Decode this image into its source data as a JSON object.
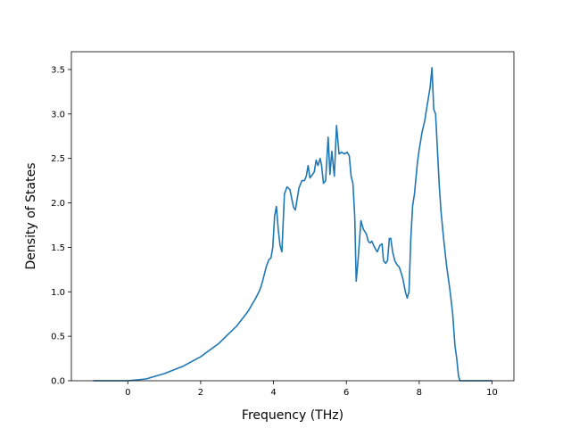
{
  "chart_data": {
    "type": "line",
    "title": "",
    "xlabel": "Frequency (THz)",
    "ylabel": "Density of States",
    "xlim": [
      -1.55,
      10.6
    ],
    "ylim": [
      0,
      3.7
    ],
    "xticks": [
      0,
      2,
      4,
      6,
      8,
      10
    ],
    "xtick_labels": [
      "0",
      "2",
      "4",
      "6",
      "8",
      "10"
    ],
    "yticks": [
      0,
      0.5,
      1.0,
      1.5,
      2.0,
      2.5,
      3.0,
      3.5
    ],
    "ytick_labels": [
      "0.0",
      "0.5",
      "1.0",
      "1.5",
      "2.0",
      "2.5",
      "3.0",
      "3.5"
    ],
    "grid": false,
    "legend": "none",
    "line_color": "#1f77b4",
    "series": [
      {
        "x": [
          -0.95,
          -0.5,
          0,
          0.5,
          1.0,
          1.5,
          2.0,
          2.5,
          3.0,
          3.3,
          3.5,
          3.6,
          3.65,
          3.7,
          3.75,
          3.8,
          3.87,
          3.93,
          3.98,
          4.03,
          4.08,
          4.13,
          4.18,
          4.23,
          4.3,
          4.37,
          4.45,
          4.55,
          4.6,
          4.7,
          4.78,
          4.85,
          4.9,
          4.95,
          5.0,
          5.07,
          5.12,
          5.17,
          5.22,
          5.28,
          5.32,
          5.37,
          5.43,
          5.5,
          5.55,
          5.6,
          5.67,
          5.73,
          5.8,
          5.87,
          5.95,
          6.02,
          6.08,
          6.13,
          6.18,
          6.23,
          6.27,
          6.32,
          6.4,
          6.47,
          6.55,
          6.6,
          6.65,
          6.7,
          6.75,
          6.8,
          6.85,
          6.92,
          6.98,
          7.02,
          7.08,
          7.13,
          7.18,
          7.22,
          7.27,
          7.33,
          7.4,
          7.45,
          7.5,
          7.55,
          7.62,
          7.67,
          7.72,
          7.77,
          7.82,
          7.87,
          7.95,
          8.0,
          8.08,
          8.15,
          8.22,
          8.3,
          8.35,
          8.4,
          8.45,
          8.5,
          8.55,
          8.6,
          8.67,
          8.75,
          8.85,
          8.92,
          8.98,
          9.03,
          9.08,
          9.12,
          9.2,
          9.3,
          10.0
        ],
        "y": [
          0.0,
          0.0,
          0.0,
          0.02,
          0.08,
          0.16,
          0.27,
          0.42,
          0.62,
          0.78,
          0.92,
          1.0,
          1.05,
          1.12,
          1.2,
          1.28,
          1.36,
          1.38,
          1.5,
          1.85,
          1.96,
          1.7,
          1.52,
          1.45,
          2.1,
          2.18,
          2.15,
          1.95,
          1.92,
          2.17,
          2.25,
          2.25,
          2.3,
          2.42,
          2.28,
          2.32,
          2.35,
          2.48,
          2.42,
          2.5,
          2.42,
          2.22,
          2.25,
          2.74,
          2.32,
          2.58,
          2.3,
          2.87,
          2.55,
          2.57,
          2.55,
          2.57,
          2.53,
          2.3,
          2.22,
          1.85,
          1.12,
          1.35,
          1.8,
          1.7,
          1.65,
          1.57,
          1.55,
          1.57,
          1.52,
          1.48,
          1.45,
          1.52,
          1.54,
          1.35,
          1.32,
          1.35,
          1.6,
          1.6,
          1.45,
          1.35,
          1.3,
          1.28,
          1.22,
          1.15,
          1.0,
          0.93,
          1.0,
          1.6,
          1.97,
          2.1,
          2.45,
          2.6,
          2.8,
          2.92,
          3.1,
          3.3,
          3.52,
          3.05,
          3.0,
          2.6,
          2.2,
          1.9,
          1.6,
          1.3,
          1.0,
          0.75,
          0.4,
          0.25,
          0.05,
          0.0,
          0.0,
          0.0,
          0.0
        ]
      }
    ]
  }
}
